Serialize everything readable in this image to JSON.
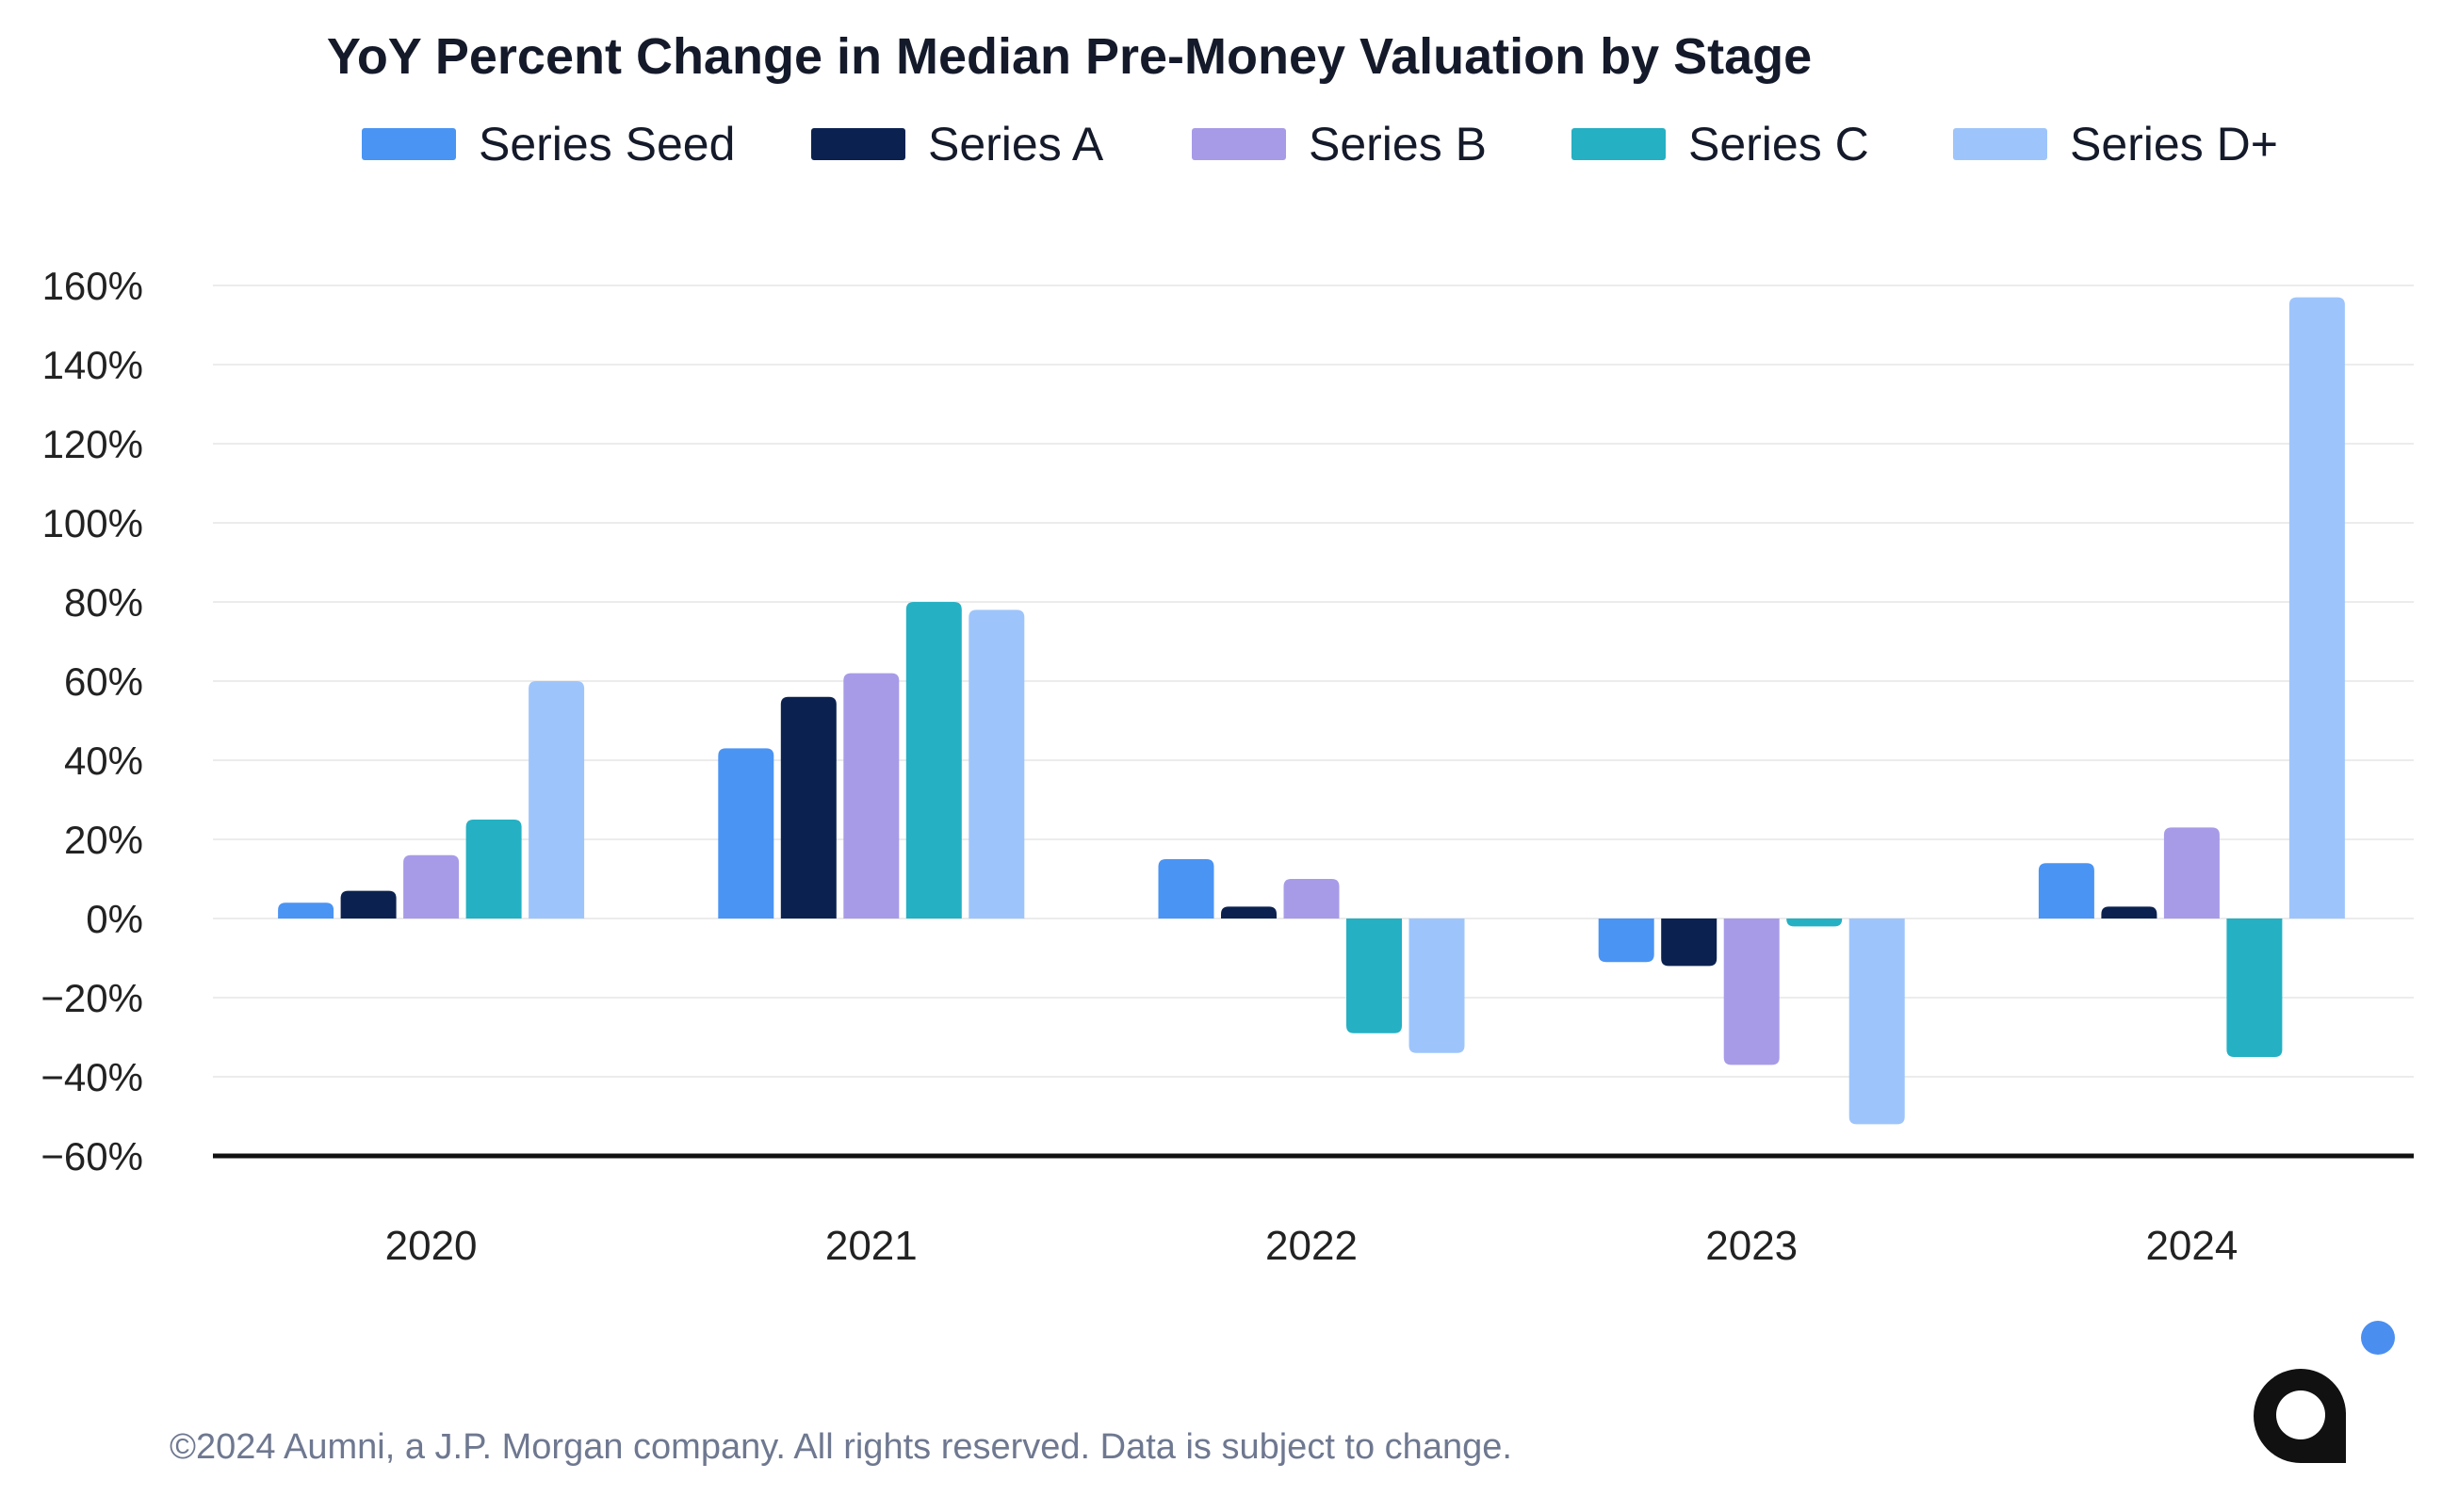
{
  "colors": {
    "series_seed": "#4a94f4",
    "series_a": "#0b2250",
    "series_b": "#a79be8",
    "series_c": "#25b0c3",
    "series_d": "#9ec5fb",
    "logo_dot": "#4a8ef0",
    "logo_mark": "#111111",
    "baseline": "#111111"
  },
  "chart_data": {
    "type": "bar",
    "title": "YoY Percent Change in Median Pre-Money Valuation by Stage",
    "xlabel": "",
    "ylabel": "",
    "categories": [
      "2020",
      "2021",
      "2022",
      "2023",
      "2024"
    ],
    "series": [
      {
        "name": "Series Seed",
        "values": [
          4,
          43,
          15,
          -11,
          14
        ]
      },
      {
        "name": "Series A",
        "values": [
          7,
          56,
          3,
          -12,
          3
        ]
      },
      {
        "name": "Series B",
        "values": [
          16,
          62,
          10,
          -37,
          23
        ]
      },
      {
        "name": "Series C",
        "values": [
          25,
          80,
          -29,
          -2,
          -35
        ]
      },
      {
        "name": "Series D+",
        "values": [
          60,
          78,
          -34,
          -52,
          157
        ]
      }
    ],
    "ylim": [
      -60,
      160
    ],
    "yticks": [
      160,
      140,
      120,
      100,
      80,
      60,
      40,
      20,
      0,
      -20,
      -40,
      -60
    ],
    "ytick_labels": [
      "160%",
      "140%",
      "120%",
      "100%",
      "80%",
      "60%",
      "40%",
      "20%",
      "0%",
      "−20%",
      "−40%",
      "−60%"
    ],
    "grid": true,
    "legend_position": "top-center"
  },
  "footer": {
    "copyright": "©2024 Aumni, a J.P. Morgan company. All rights reserved. Data is subject to change."
  },
  "logo": {
    "icon": "aumni-logo-icon",
    "letter": "a"
  }
}
